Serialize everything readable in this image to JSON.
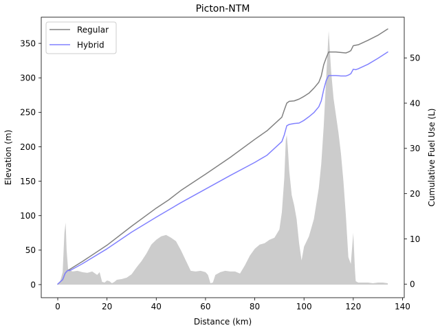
{
  "chart_data": {
    "type": "line",
    "title": "Picton-NTM",
    "xlabel": "Distance (km)",
    "ylabel": "Elevation (m)",
    "y2label": "Cumulative Fuel Use (L)",
    "xlim": [
      -6.7,
      140.7
    ],
    "ylim": [
      -19,
      388
    ],
    "y2lim": [
      -3.0,
      59.0
    ],
    "xticks": [
      0,
      20,
      40,
      60,
      80,
      100,
      120,
      140
    ],
    "yticks": [
      0,
      50,
      100,
      150,
      200,
      250,
      300,
      350
    ],
    "y2ticks": [
      0,
      10,
      20,
      30,
      40,
      50
    ],
    "grid": false,
    "legend": {
      "position": "top-left",
      "entries": [
        "Regular",
        "Hybrid"
      ]
    },
    "elevation": {
      "color": "#cccccc",
      "points": [
        [
          0,
          0
        ],
        [
          1,
          5
        ],
        [
          2,
          18
        ],
        [
          2.7,
          75
        ],
        [
          3.2,
          90
        ],
        [
          3.6,
          50
        ],
        [
          4.2,
          22
        ],
        [
          6,
          19
        ],
        [
          8,
          20
        ],
        [
          10,
          18
        ],
        [
          12,
          17
        ],
        [
          14,
          19
        ],
        [
          16,
          14
        ],
        [
          17,
          18
        ],
        [
          18,
          4
        ],
        [
          19,
          3
        ],
        [
          20,
          6
        ],
        [
          21,
          5
        ],
        [
          22,
          2
        ],
        [
          23,
          4
        ],
        [
          24,
          7
        ],
        [
          26,
          8
        ],
        [
          28,
          10
        ],
        [
          30,
          15
        ],
        [
          32,
          25
        ],
        [
          34,
          34
        ],
        [
          36,
          45
        ],
        [
          38,
          58
        ],
        [
          40,
          65
        ],
        [
          42,
          70
        ],
        [
          44,
          72
        ],
        [
          46,
          68
        ],
        [
          48,
          63
        ],
        [
          50,
          50
        ],
        [
          52,
          35
        ],
        [
          54,
          20
        ],
        [
          56,
          19
        ],
        [
          58,
          20
        ],
        [
          60,
          18
        ],
        [
          61,
          14
        ],
        [
          62,
          2
        ],
        [
          63,
          3
        ],
        [
          64,
          14
        ],
        [
          66,
          18
        ],
        [
          68,
          20
        ],
        [
          70,
          19
        ],
        [
          72,
          19
        ],
        [
          74,
          16
        ],
        [
          76,
          28
        ],
        [
          78,
          42
        ],
        [
          80,
          52
        ],
        [
          82,
          58
        ],
        [
          84,
          60
        ],
        [
          86,
          65
        ],
        [
          88,
          68
        ],
        [
          90,
          80
        ],
        [
          91,
          105
        ],
        [
          92,
          155
        ],
        [
          92.6,
          210
        ],
        [
          93,
          217
        ],
        [
          93.4,
          200
        ],
        [
          94,
          165
        ],
        [
          95,
          130
        ],
        [
          96,
          115
        ],
        [
          97,
          95
        ],
        [
          98,
          60
        ],
        [
          99,
          35
        ],
        [
          100,
          55
        ],
        [
          102,
          70
        ],
        [
          104,
          95
        ],
        [
          106,
          140
        ],
        [
          107,
          175
        ],
        [
          108,
          230
        ],
        [
          109,
          300
        ],
        [
          110,
          368
        ],
        [
          111,
          310
        ],
        [
          112,
          270
        ],
        [
          113,
          245
        ],
        [
          114,
          220
        ],
        [
          115,
          190
        ],
        [
          116,
          150
        ],
        [
          117,
          100
        ],
        [
          118,
          40
        ],
        [
          119,
          30
        ],
        [
          120,
          75
        ],
        [
          120.7,
          20
        ],
        [
          121,
          5
        ],
        [
          122,
          3
        ],
        [
          124,
          3
        ],
        [
          126,
          3
        ],
        [
          128,
          2
        ],
        [
          130,
          3
        ],
        [
          132,
          3
        ],
        [
          134,
          2
        ]
      ]
    },
    "series": [
      {
        "name": "Regular",
        "color": "#808080",
        "points": [
          [
            0,
            0
          ],
          [
            2,
            1
          ],
          [
            3,
            2.4
          ],
          [
            4,
            3
          ],
          [
            5,
            3.3
          ],
          [
            10,
            5
          ],
          [
            20,
            8.6
          ],
          [
            30,
            12.8
          ],
          [
            40,
            16.8
          ],
          [
            45,
            18.6
          ],
          [
            50,
            20.7
          ],
          [
            60,
            24.3
          ],
          [
            70,
            28
          ],
          [
            80,
            32
          ],
          [
            85,
            33.9
          ],
          [
            88,
            35.4
          ],
          [
            91,
            36.9
          ],
          [
            92,
            38.5
          ],
          [
            93,
            40
          ],
          [
            94,
            40.4
          ],
          [
            96,
            40.5
          ],
          [
            98,
            40.9
          ],
          [
            100,
            41.5
          ],
          [
            102,
            42.2
          ],
          [
            104,
            43.3
          ],
          [
            106,
            44.6
          ],
          [
            107,
            46
          ],
          [
            108,
            48.5
          ],
          [
            109,
            50
          ],
          [
            110,
            51.3
          ],
          [
            111,
            51.3
          ],
          [
            113,
            51.3
          ],
          [
            115,
            51.2
          ],
          [
            117,
            51.1
          ],
          [
            118,
            51.3
          ],
          [
            119,
            51.6
          ],
          [
            120,
            52.7
          ],
          [
            121,
            52.8
          ],
          [
            122,
            52.9
          ],
          [
            126,
            53.9
          ],
          [
            130,
            55
          ],
          [
            134,
            56.4
          ]
        ]
      },
      {
        "name": "Hybrid",
        "color": "#8080ff",
        "points": [
          [
            0,
            0
          ],
          [
            2,
            1
          ],
          [
            3,
            2.4
          ],
          [
            4,
            3
          ],
          [
            5,
            3
          ],
          [
            10,
            4.5
          ],
          [
            20,
            7.8
          ],
          [
            30,
            11.5
          ],
          [
            40,
            14.8
          ],
          [
            45,
            16.4
          ],
          [
            50,
            18
          ],
          [
            60,
            21
          ],
          [
            70,
            24
          ],
          [
            80,
            26.9
          ],
          [
            85,
            28.5
          ],
          [
            88,
            30
          ],
          [
            91,
            31.5
          ],
          [
            92,
            33
          ],
          [
            93,
            35
          ],
          [
            94,
            35.3
          ],
          [
            96,
            35.5
          ],
          [
            98,
            35.6
          ],
          [
            100,
            36.2
          ],
          [
            102,
            37
          ],
          [
            104,
            37.9
          ],
          [
            106,
            39.2
          ],
          [
            107,
            40.5
          ],
          [
            108,
            43
          ],
          [
            109,
            45
          ],
          [
            110,
            46.1
          ],
          [
            111,
            46.1
          ],
          [
            113,
            46.1
          ],
          [
            115,
            46
          ],
          [
            117,
            46
          ],
          [
            118,
            46.2
          ],
          [
            119,
            46.5
          ],
          [
            120,
            47.5
          ],
          [
            121,
            47.4
          ],
          [
            122,
            47.6
          ],
          [
            126,
            48.6
          ],
          [
            130,
            49.9
          ],
          [
            134,
            51.3
          ]
        ]
      }
    ]
  }
}
